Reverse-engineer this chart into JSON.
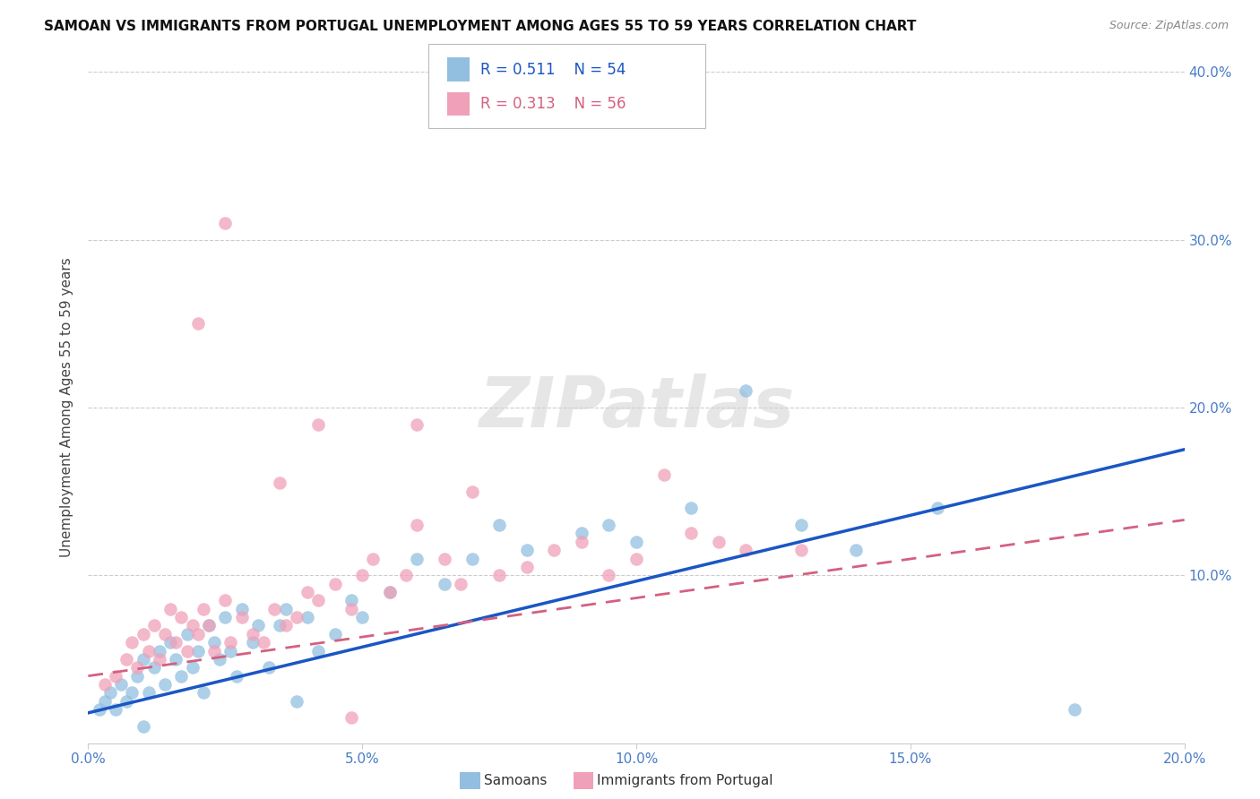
{
  "title": "SAMOAN VS IMMIGRANTS FROM PORTUGAL UNEMPLOYMENT AMONG AGES 55 TO 59 YEARS CORRELATION CHART",
  "source": "Source: ZipAtlas.com",
  "ylabel": "Unemployment Among Ages 55 to 59 years",
  "xlim": [
    0,
    0.2
  ],
  "ylim": [
    0,
    0.4
  ],
  "xticks": [
    0.0,
    0.05,
    0.1,
    0.15,
    0.2
  ],
  "yticks": [
    0.0,
    0.1,
    0.2,
    0.3,
    0.4
  ],
  "xtick_labels": [
    "0.0%",
    "5.0%",
    "10.0%",
    "15.0%",
    "20.0%"
  ],
  "ytick_labels_right": [
    "",
    "10.0%",
    "20.0%",
    "30.0%",
    "40.0%"
  ],
  "samoans_color": "#92bfe0",
  "portugal_color": "#f0a0b8",
  "trendline_blue": "#1a56c4",
  "trendline_pink": "#d46080",
  "R_samoans": 0.511,
  "N_samoans": 54,
  "R_portugal": 0.313,
  "N_portugal": 56,
  "watermark": "ZIPatlas",
  "samoans_x": [
    0.002,
    0.003,
    0.004,
    0.005,
    0.006,
    0.007,
    0.008,
    0.009,
    0.01,
    0.011,
    0.012,
    0.013,
    0.014,
    0.015,
    0.016,
    0.017,
    0.018,
    0.019,
    0.02,
    0.021,
    0.022,
    0.023,
    0.024,
    0.025,
    0.026,
    0.027,
    0.028,
    0.03,
    0.031,
    0.033,
    0.035,
    0.036,
    0.038,
    0.04,
    0.042,
    0.045,
    0.048,
    0.05,
    0.055,
    0.06,
    0.065,
    0.07,
    0.075,
    0.08,
    0.09,
    0.095,
    0.1,
    0.11,
    0.12,
    0.13,
    0.14,
    0.155,
    0.18,
    0.01
  ],
  "samoans_y": [
    0.02,
    0.025,
    0.03,
    0.02,
    0.035,
    0.025,
    0.03,
    0.04,
    0.05,
    0.03,
    0.045,
    0.055,
    0.035,
    0.06,
    0.05,
    0.04,
    0.065,
    0.045,
    0.055,
    0.03,
    0.07,
    0.06,
    0.05,
    0.075,
    0.055,
    0.04,
    0.08,
    0.06,
    0.07,
    0.045,
    0.07,
    0.08,
    0.025,
    0.075,
    0.055,
    0.065,
    0.085,
    0.075,
    0.09,
    0.11,
    0.095,
    0.11,
    0.13,
    0.115,
    0.125,
    0.13,
    0.12,
    0.14,
    0.21,
    0.13,
    0.115,
    0.14,
    0.02,
    0.01
  ],
  "portugal_x": [
    0.003,
    0.005,
    0.007,
    0.008,
    0.009,
    0.01,
    0.011,
    0.012,
    0.013,
    0.014,
    0.015,
    0.016,
    0.017,
    0.018,
    0.019,
    0.02,
    0.021,
    0.022,
    0.023,
    0.025,
    0.026,
    0.028,
    0.03,
    0.032,
    0.034,
    0.036,
    0.038,
    0.04,
    0.042,
    0.045,
    0.048,
    0.05,
    0.052,
    0.055,
    0.058,
    0.06,
    0.065,
    0.068,
    0.07,
    0.075,
    0.08,
    0.085,
    0.09,
    0.095,
    0.1,
    0.105,
    0.11,
    0.115,
    0.12,
    0.13,
    0.035,
    0.042,
    0.048,
    0.06,
    0.02,
    0.025
  ],
  "portugal_y": [
    0.035,
    0.04,
    0.05,
    0.06,
    0.045,
    0.065,
    0.055,
    0.07,
    0.05,
    0.065,
    0.08,
    0.06,
    0.075,
    0.055,
    0.07,
    0.065,
    0.08,
    0.07,
    0.055,
    0.085,
    0.06,
    0.075,
    0.065,
    0.06,
    0.08,
    0.07,
    0.075,
    0.09,
    0.085,
    0.095,
    0.08,
    0.1,
    0.11,
    0.09,
    0.1,
    0.13,
    0.11,
    0.095,
    0.15,
    0.1,
    0.105,
    0.115,
    0.12,
    0.1,
    0.11,
    0.16,
    0.125,
    0.12,
    0.115,
    0.115,
    0.155,
    0.19,
    0.015,
    0.19,
    0.25,
    0.31
  ]
}
